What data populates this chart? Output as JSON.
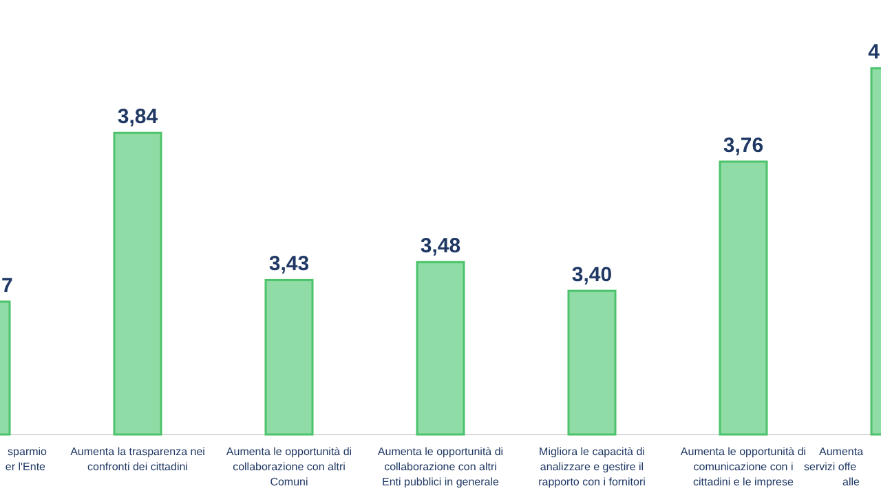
{
  "chart_data": {
    "type": "bar",
    "categories": [
      "sparmio\ner l'Ente",
      "Aumenta la trasparenza nei\nconfronti dei cittadini",
      "Aumenta le opportunità di\ncollaborazione con altri\nComuni",
      "Aumenta le opportunità di\ncollaborazione con altri\nEnti pubblici in generale",
      "Migliora le capacità di\nanalizzare e gestire il\nrapporto con i fornitori",
      "Aumenta le opportunità di\ncomunicazione con i\ncittadini e le imprese",
      "Aumenta\nservizi offe\nalle"
    ],
    "values": [
      3.37,
      3.84,
      3.43,
      3.48,
      3.4,
      3.76,
      4.02
    ],
    "value_labels": [
      null,
      "3,84",
      "3,43",
      "3,48",
      "3,40",
      "3,76",
      null
    ],
    "annotations": [
      "7",
      "4"
    ],
    "color": "#8fdca6",
    "ylim": [
      3.0,
      4.21
    ]
  }
}
